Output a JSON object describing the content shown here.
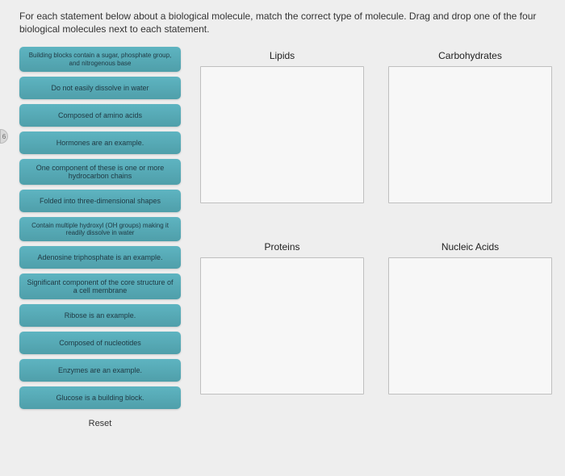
{
  "instruction": "For each statement below about a biological molecule, match the correct type of molecule. Drag and drop one of the four biological molecules next to each statement.",
  "statements": [
    {
      "text": "Building blocks contain a sugar, phosphate group, and nitrogenous base",
      "tiny": true
    },
    {
      "text": "Do not easily dissolve in water",
      "tiny": false
    },
    {
      "text": "Composed of amino acids",
      "tiny": false
    },
    {
      "text": "Hormones are an example.",
      "tiny": false
    },
    {
      "text": "One component of these is one or more hydrocarbon chains",
      "tiny": false
    },
    {
      "text": "Folded into three-dimensional shapes",
      "tiny": false
    },
    {
      "text": "Contain multiple hydroxyl (OH groups) making it readily dissolve in water",
      "tiny": true
    },
    {
      "text": "Adenosine triphosphate is an example.",
      "tiny": false
    },
    {
      "text": "Significant component of the core structure of a cell membrane",
      "tiny": false
    },
    {
      "text": "Ribose is an example.",
      "tiny": false
    },
    {
      "text": "Composed of nucleotides",
      "tiny": false
    },
    {
      "text": "Enzymes are an example.",
      "tiny": false
    },
    {
      "text": "Glucose is a building block.",
      "tiny": false
    }
  ],
  "reset_label": "Reset",
  "targets": {
    "top_left": "Lipids",
    "top_right": "Carbohydrates",
    "bottom_left": "Proteins",
    "bottom_right": "Nucleic Acids"
  },
  "side_marker": "6",
  "colors": {
    "page_bg": "#eeeeee",
    "stmt_bg_top": "#5eb4c1",
    "stmt_bg_bottom": "#4f9faa",
    "stmt_text": "#1f3842",
    "drop_border": "#bfbfbf",
    "drop_bg": "#f7f7f7"
  }
}
